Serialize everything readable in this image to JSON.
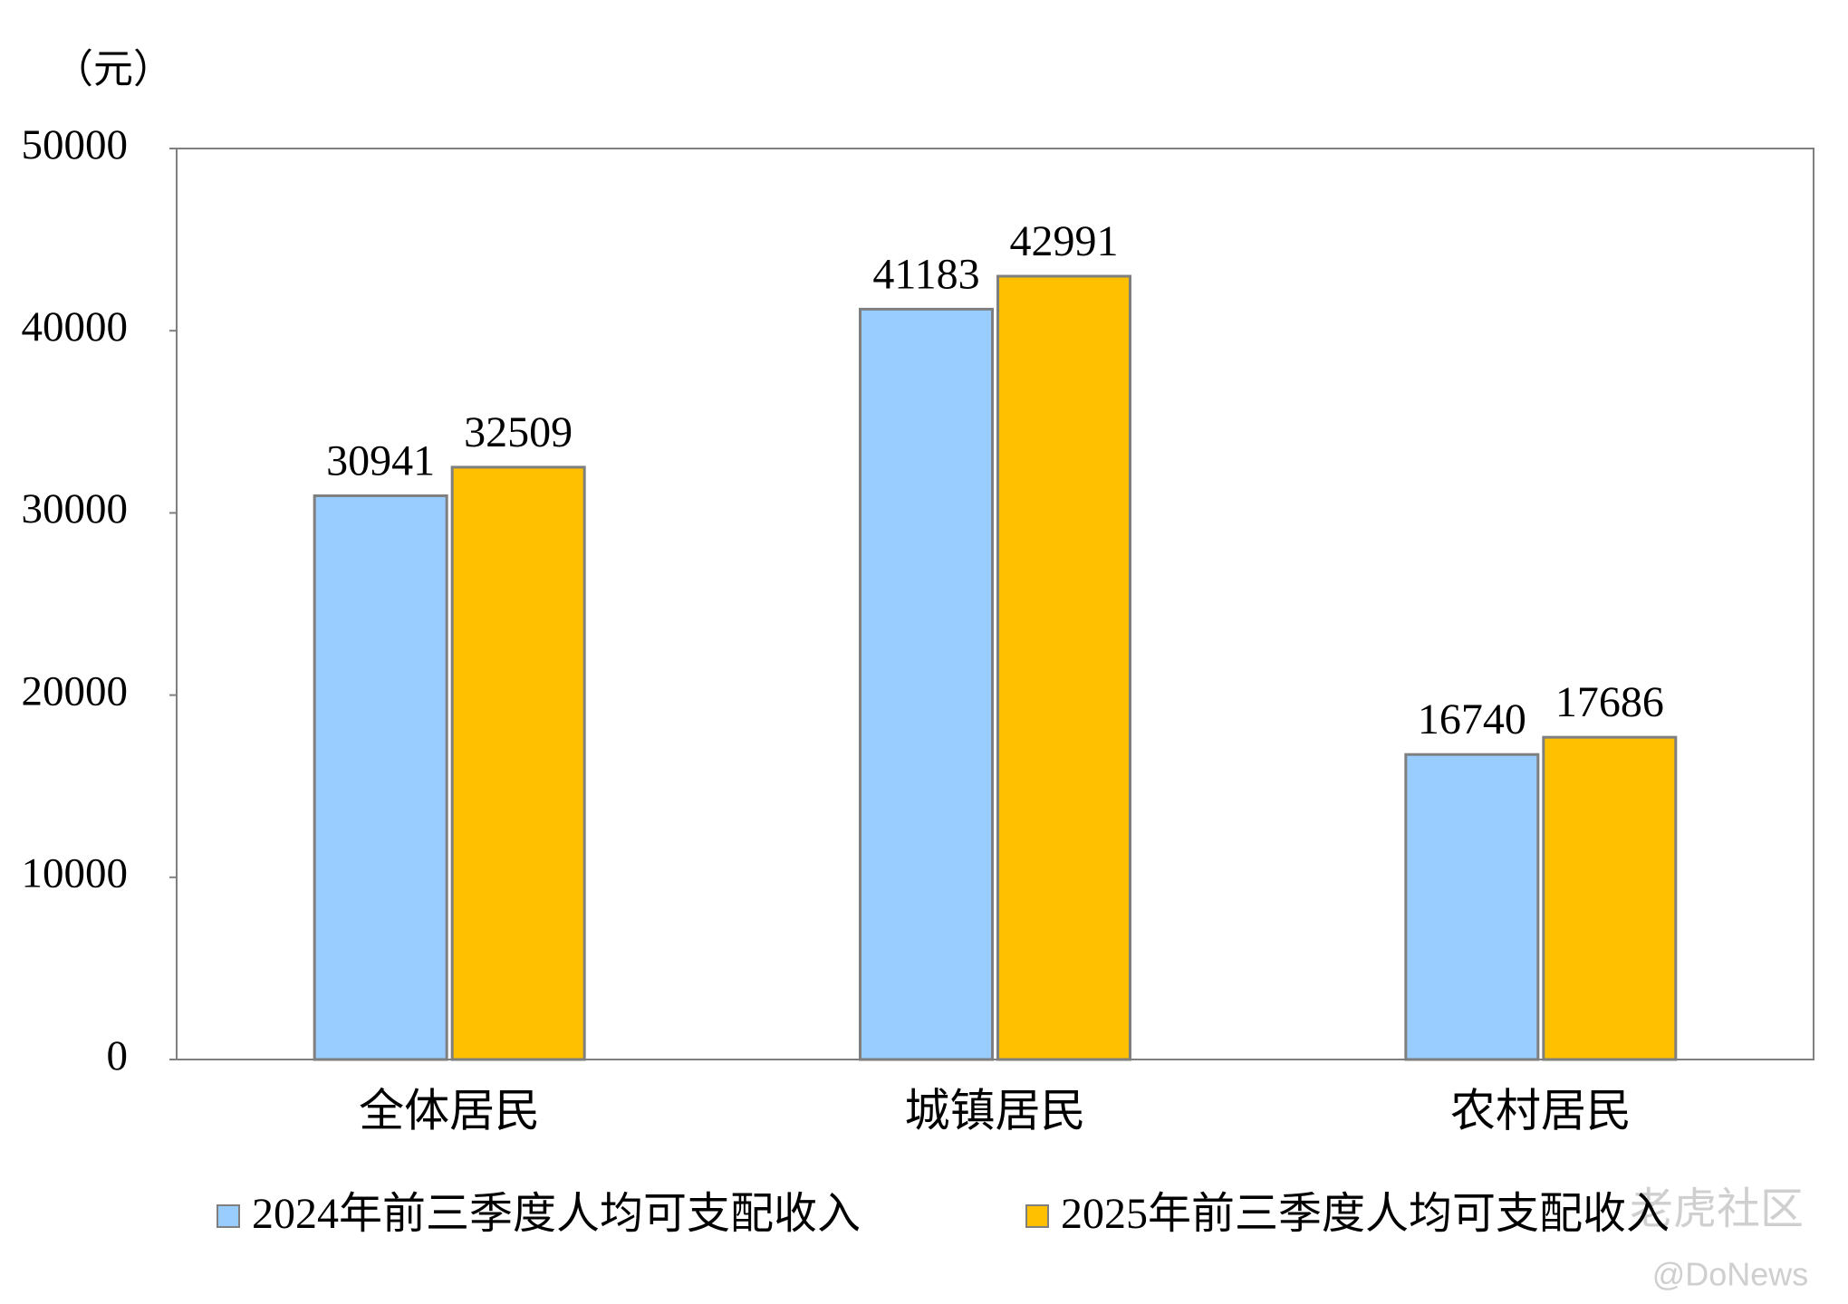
{
  "chart_data": {
    "type": "bar",
    "unit": "（元）",
    "categories": [
      "全体居民",
      "城镇居民",
      "农村居民"
    ],
    "series": [
      {
        "name": "2024年前三季度人均可支配收入",
        "color": "#99ccff",
        "values": [
          30941,
          41183,
          16740
        ]
      },
      {
        "name": "2025年前三季度人均可支配收入",
        "color": "#ffc000",
        "values": [
          32509,
          42991,
          17686
        ]
      }
    ],
    "ylim": [
      0,
      50000
    ],
    "yticks": [
      0,
      10000,
      20000,
      30000,
      40000,
      50000
    ],
    "legend": "bottom",
    "watermark": [
      "老虎社区",
      "@DoNews"
    ]
  }
}
